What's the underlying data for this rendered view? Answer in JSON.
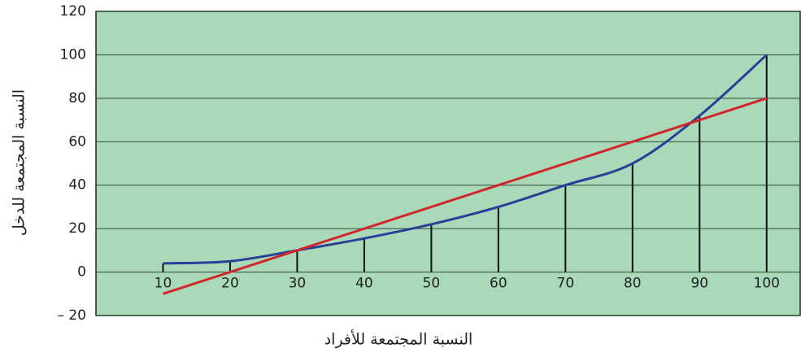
{
  "chart_data": {
    "type": "line",
    "x_label": "النسبة المجتمعة للأفراد",
    "y_label": "النسبة المجتمعة للدخل",
    "x": [
      10,
      20,
      30,
      40,
      50,
      60,
      70,
      80,
      90,
      100
    ],
    "series": [
      {
        "color": "#2a3f97",
        "values": [
          4,
          5,
          10,
          15.5,
          22,
          30,
          40,
          50,
          72,
          100
        ]
      },
      {
        "color": "#d2262b",
        "values": [
          -10,
          0,
          10,
          20,
          30,
          40,
          50,
          60,
          70,
          80
        ]
      }
    ],
    "xlim": [
      0,
      105
    ],
    "xticks": [
      10,
      20,
      30,
      40,
      50,
      60,
      70,
      80,
      90,
      100
    ],
    "ylim": [
      -20,
      120
    ],
    "yticks": [
      {
        "value": -20,
        "label": "– 20"
      },
      0,
      20,
      40,
      60,
      80,
      100,
      120
    ],
    "grid": true,
    "background": "#a9d9b9"
  }
}
